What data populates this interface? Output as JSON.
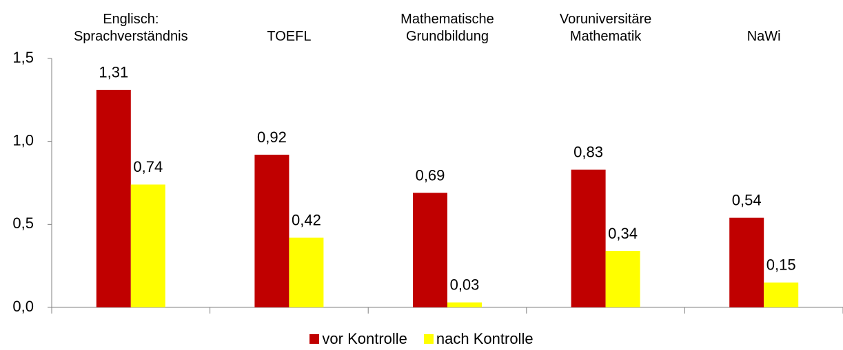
{
  "chart_data": {
    "type": "bar",
    "categories": [
      "Englisch:\nSprachverständnis",
      "TOEFL",
      "Mathematische\nGrundbildung",
      "Voruniversitäre\nMathematik",
      "NaWi"
    ],
    "series": [
      {
        "name": "vor Kontrolle",
        "color": "#c00000",
        "values": [
          1.31,
          0.92,
          0.69,
          0.83,
          0.54
        ],
        "value_labels": [
          "1,31",
          "0,92",
          "0,69",
          "0,83",
          "0,54"
        ]
      },
      {
        "name": "nach Kontrolle",
        "color": "#ffff00",
        "values": [
          0.74,
          0.42,
          0.03,
          0.34,
          0.15
        ],
        "value_labels": [
          "0,74",
          "0,42",
          "0,03",
          "0,34",
          "0,15"
        ]
      }
    ],
    "ylim": [
      0,
      1.5
    ],
    "yticks": [
      {
        "value": 0,
        "label": "0,0"
      },
      {
        "value": 0.5,
        "label": "0,5"
      },
      {
        "value": 1,
        "label": "1,0"
      },
      {
        "value": 1.5,
        "label": "1,5"
      }
    ],
    "legend": "bottom"
  }
}
